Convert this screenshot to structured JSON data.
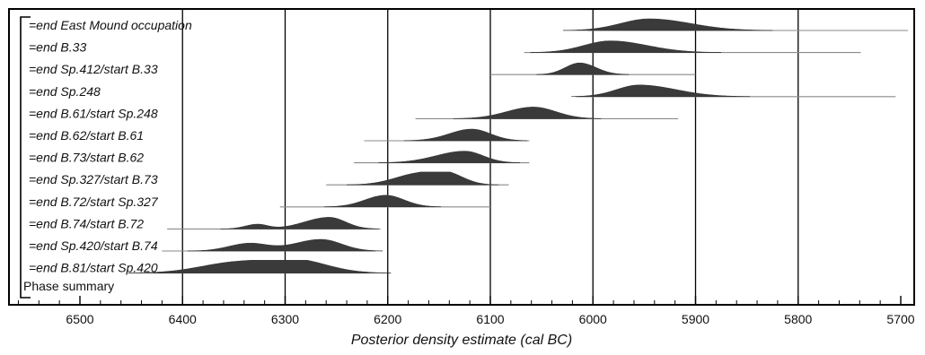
{
  "chart_data": {
    "type": "area",
    "xlabel": "Posterior density estimate (cal BC)",
    "xlim": [
      6590,
      5690
    ],
    "major_ticks": [
      6500,
      6400,
      6300,
      6200,
      6100,
      6000,
      5900,
      5800,
      5700
    ],
    "minor_step": 20,
    "gridlines": [
      6400,
      6300,
      6200,
      6100,
      6000,
      5900,
      5800
    ],
    "grid": true,
    "bracket_label": "Phase summary",
    "series": [
      {
        "name": "=end East Mound occupation",
        "range": [
          6005,
          5693
        ],
        "peaks": [
          {
            "x": 5945,
            "h": 1.0,
            "wl": 28,
            "wr": 40
          }
        ]
      },
      {
        "name": "=end B.33",
        "range": [
          6067,
          5739
        ],
        "peaks": [
          {
            "x": 5983,
            "h": 1.0,
            "wl": 26,
            "wr": 36
          }
        ]
      },
      {
        "name": "=end Sp.412/start B.33",
        "range": [
          6100,
          5900
        ],
        "peaks": [
          {
            "x": 6013,
            "h": 1.0,
            "wl": 14,
            "wr": 16
          }
        ]
      },
      {
        "name": "=end Sp.248",
        "range": [
          6017,
          5705
        ],
        "peaks": [
          {
            "x": 5955,
            "h": 1.0,
            "wl": 22,
            "wr": 36
          }
        ]
      },
      {
        "name": "=end B.61/start Sp.248",
        "range": [
          6173,
          5917
        ],
        "peaks": [
          {
            "x": 6058,
            "h": 1.0,
            "wl": 26,
            "wr": 22
          }
        ]
      },
      {
        "name": "=end B.62/start B.61",
        "range": [
          6223,
          6062
        ],
        "peaks": [
          {
            "x": 6118,
            "h": 1.0,
            "wl": 22,
            "wr": 18
          }
        ]
      },
      {
        "name": "=end B.73/start B.62",
        "range": [
          6233,
          6062
        ],
        "peaks": [
          {
            "x": 6125,
            "h": 1.0,
            "wl": 28,
            "wr": 18
          }
        ]
      },
      {
        "name": "=end Sp.327/start B.73",
        "range": [
          6260,
          6082
        ],
        "peaks": [
          {
            "x": 6168,
            "h": 1.0,
            "wl": 24,
            "wr": 20
          },
          {
            "x": 6140,
            "h": 0.75,
            "wl": 14,
            "wr": 16
          }
        ]
      },
      {
        "name": "=end B.72/start Sp.327",
        "range": [
          6305,
          6100
        ],
        "peaks": [
          {
            "x": 6202,
            "h": 1.0,
            "wl": 20,
            "wr": 18
          }
        ]
      },
      {
        "name": "=end B.74/start B.72",
        "range": [
          6415,
          6207
        ],
        "peaks": [
          {
            "x": 6327,
            "h": 0.4,
            "wl": 12,
            "wr": 10
          },
          {
            "x": 6257,
            "h": 1.0,
            "wl": 24,
            "wr": 16
          }
        ]
      },
      {
        "name": "=end Sp.420/start B.74",
        "range": [
          6420,
          6212
        ],
        "peaks": [
          {
            "x": 6335,
            "h": 0.65,
            "wl": 20,
            "wr": 18
          },
          {
            "x": 6265,
            "h": 1.0,
            "wl": 26,
            "wr": 20
          }
        ]
      },
      {
        "name": "=end B.81/start Sp.420",
        "range": [
          6428,
          6218
        ],
        "peaks": [
          {
            "x": 6345,
            "h": 0.95,
            "wl": 36,
            "wr": 34
          },
          {
            "x": 6287,
            "h": 1.0,
            "wl": 26,
            "wr": 30
          }
        ]
      }
    ]
  }
}
